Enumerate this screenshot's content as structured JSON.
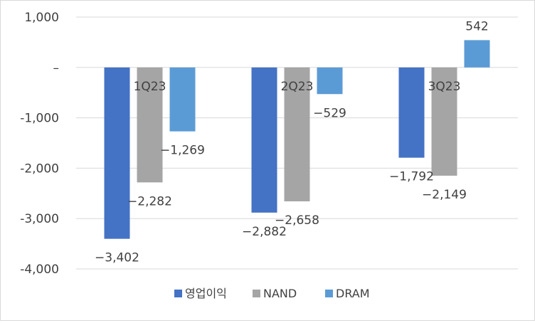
{
  "chart_data": {
    "type": "bar",
    "title": "",
    "xlabel": "",
    "ylabel": "",
    "categories": [
      "1Q23",
      "2Q23",
      "3Q23"
    ],
    "series": [
      {
        "name": "영업이익",
        "color": "#4472C4",
        "values": [
          -3402,
          -2882,
          -1792
        ],
        "labels": [
          "−3,402",
          "−2,882",
          "−1,792"
        ]
      },
      {
        "name": "NAND",
        "color": "#A5A5A5",
        "values": [
          -2282,
          -2658,
          -2149
        ],
        "labels": [
          "−2,282",
          "−2,658",
          "−2,149"
        ]
      },
      {
        "name": "DRAM",
        "color": "#5B9BD5",
        "values": [
          -1269,
          -529,
          542
        ],
        "labels": [
          "−1,269",
          "−529",
          "542"
        ]
      }
    ],
    "ylim": [
      -4000,
      1000
    ],
    "yticks": [
      1000,
      0,
      -1000,
      -2000,
      -3000,
      -4000
    ],
    "ytick_labels": [
      "1,000",
      "–",
      "-1,000",
      "-2,000",
      "-3,000",
      "-4,000"
    ],
    "grid": true,
    "legend_position": "bottom"
  }
}
